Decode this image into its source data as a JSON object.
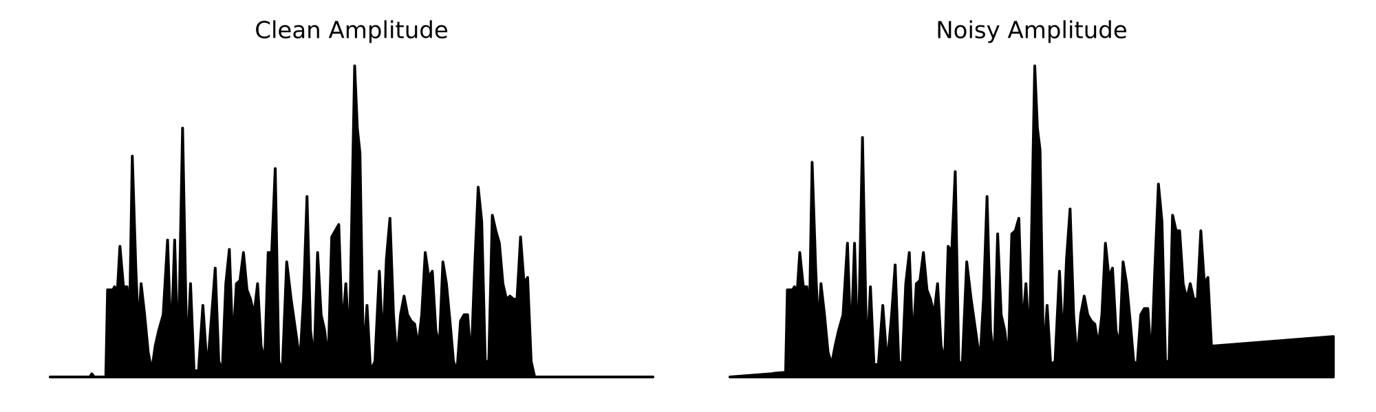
{
  "chart_data": [
    {
      "type": "area",
      "title": "Clean Amplitude",
      "color": "#000000",
      "xlim": [
        0,
        683
      ],
      "ylim": [
        0,
        1
      ],
      "x": [
        0,
        45,
        47,
        50,
        63,
        65,
        71,
        73,
        76,
        79,
        83,
        87,
        90,
        93,
        97,
        100,
        103,
        107,
        111,
        115,
        119,
        123,
        128,
        133,
        137,
        141,
        145,
        150,
        155,
        159,
        163,
        168,
        173,
        178,
        183,
        187,
        191,
        195,
        199,
        203,
        207,
        211,
        215,
        219,
        223,
        227,
        231,
        235,
        239,
        243,
        247,
        251,
        255,
        259,
        263,
        268,
        273,
        278,
        283,
        287,
        291,
        295,
        299,
        303,
        307,
        311,
        315,
        319,
        323,
        327,
        331,
        335,
        339,
        345,
        348,
        351,
        355,
        359,
        363,
        368,
        373,
        377,
        381,
        385,
        389,
        393,
        397,
        401,
        405,
        409,
        413,
        417,
        421,
        425,
        429,
        433,
        437,
        441,
        445,
        449,
        453,
        457,
        461,
        465,
        469,
        473,
        477,
        481,
        485,
        489,
        493,
        497,
        501,
        505,
        509,
        513,
        517,
        521,
        525,
        529,
        533,
        537,
        541,
        545,
        549,
        683
      ],
      "values": [
        0,
        0,
        0.01,
        0,
        0,
        0.28,
        0.28,
        0.29,
        0.27,
        0.42,
        0.29,
        0.29,
        0.2,
        0.71,
        0.35,
        0.15,
        0.3,
        0.2,
        0.08,
        0.02,
        0.1,
        0.15,
        0.2,
        0.44,
        0.1,
        0.44,
        0.05,
        0.8,
        0.05,
        0.3,
        0.02,
        0.02,
        0.23,
        0.02,
        0.2,
        0.35,
        0.05,
        0.02,
        0.3,
        0.41,
        0.1,
        0.3,
        0.31,
        0.4,
        0.28,
        0.25,
        0.2,
        0.3,
        0.1,
        0.05,
        0.4,
        0.4,
        0.67,
        0.05,
        0.02,
        0.37,
        0.25,
        0.15,
        0.05,
        0.25,
        0.58,
        0.15,
        0.05,
        0.4,
        0.2,
        0.15,
        0.05,
        0.45,
        0.47,
        0.49,
        0.15,
        0.3,
        0.1,
        1.0,
        0.8,
        0.72,
        0.05,
        0.23,
        0.02,
        0.05,
        0.34,
        0.1,
        0.38,
        0.51,
        0.2,
        0.05,
        0.2,
        0.26,
        0.2,
        0.18,
        0.17,
        0.1,
        0.2,
        0.4,
        0.32,
        0.34,
        0.15,
        0.1,
        0.37,
        0.3,
        0.18,
        0.05,
        0.02,
        0.18,
        0.2,
        0.2,
        0.05,
        0.35,
        0.61,
        0.5,
        0.05,
        0.05,
        0.52,
        0.47,
        0.43,
        0.3,
        0.25,
        0.26,
        0.25,
        0.25,
        0.45,
        0.3,
        0.32,
        0.05,
        0,
        0
      ]
    },
    {
      "type": "area",
      "title": "Noisy Amplitude",
      "color": "#000000",
      "xlim": [
        0,
        683
      ],
      "ylim": [
        0,
        1
      ],
      "x": [
        0,
        45,
        47,
        50,
        63,
        65,
        71,
        73,
        76,
        79,
        83,
        87,
        90,
        93,
        97,
        100,
        103,
        107,
        111,
        115,
        119,
        123,
        128,
        133,
        137,
        141,
        145,
        150,
        155,
        159,
        163,
        168,
        173,
        178,
        183,
        187,
        191,
        195,
        199,
        203,
        207,
        211,
        215,
        219,
        223,
        227,
        231,
        235,
        239,
        243,
        247,
        251,
        255,
        259,
        263,
        268,
        273,
        278,
        283,
        287,
        291,
        295,
        299,
        303,
        307,
        311,
        315,
        319,
        323,
        327,
        331,
        335,
        339,
        345,
        348,
        351,
        355,
        359,
        363,
        368,
        373,
        377,
        381,
        385,
        389,
        393,
        397,
        401,
        405,
        409,
        413,
        417,
        421,
        425,
        429,
        433,
        437,
        441,
        445,
        449,
        453,
        457,
        461,
        465,
        469,
        473,
        477,
        481,
        485,
        489,
        493,
        497,
        501,
        505,
        509,
        513,
        517,
        521,
        525,
        529,
        533,
        537,
        541,
        545,
        549,
        683
      ],
      "values": [
        0,
        0.01,
        0.01,
        0.012,
        0.015,
        0.28,
        0.28,
        0.29,
        0.27,
        0.4,
        0.29,
        0.29,
        0.2,
        0.69,
        0.35,
        0.15,
        0.3,
        0.2,
        0.08,
        0.04,
        0.1,
        0.15,
        0.2,
        0.43,
        0.1,
        0.43,
        0.05,
        0.77,
        0.05,
        0.29,
        0.04,
        0.04,
        0.23,
        0.04,
        0.2,
        0.36,
        0.05,
        0.04,
        0.3,
        0.4,
        0.1,
        0.3,
        0.31,
        0.4,
        0.28,
        0.25,
        0.2,
        0.3,
        0.1,
        0.05,
        0.42,
        0.4,
        0.66,
        0.05,
        0.04,
        0.37,
        0.25,
        0.15,
        0.05,
        0.25,
        0.58,
        0.15,
        0.05,
        0.46,
        0.2,
        0.15,
        0.05,
        0.46,
        0.47,
        0.51,
        0.15,
        0.3,
        0.1,
        1.0,
        0.8,
        0.73,
        0.05,
        0.23,
        0.04,
        0.05,
        0.34,
        0.1,
        0.38,
        0.54,
        0.2,
        0.05,
        0.2,
        0.26,
        0.2,
        0.18,
        0.17,
        0.1,
        0.2,
        0.43,
        0.32,
        0.35,
        0.15,
        0.1,
        0.37,
        0.3,
        0.18,
        0.05,
        0.04,
        0.2,
        0.22,
        0.22,
        0.05,
        0.35,
        0.62,
        0.5,
        0.05,
        0.05,
        0.52,
        0.47,
        0.47,
        0.3,
        0.25,
        0.3,
        0.25,
        0.25,
        0.47,
        0.3,
        0.32,
        0.1,
        0.1,
        0.13
      ]
    }
  ]
}
